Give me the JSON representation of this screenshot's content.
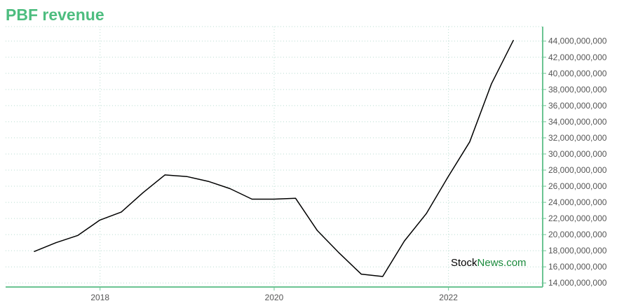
{
  "chart_data": {
    "type": "line",
    "title": "PBF revenue",
    "xlabel": "",
    "ylabel": "",
    "x": [
      "2017-03-31",
      "2017-06-30",
      "2017-09-30",
      "2017-12-31",
      "2018-03-31",
      "2018-06-30",
      "2018-09-30",
      "2018-12-31",
      "2019-03-31",
      "2019-06-30",
      "2019-09-30",
      "2019-12-31",
      "2020-03-31",
      "2020-06-30",
      "2020-09-30",
      "2020-12-31",
      "2021-03-31",
      "2021-06-30",
      "2021-09-30",
      "2021-12-31",
      "2022-03-31",
      "2022-06-30",
      "2022-09-30"
    ],
    "series": [
      {
        "values": [
          17900000000,
          19000000000,
          19900000000,
          21800000000,
          22800000000,
          25200000000,
          27400000000,
          27200000000,
          26600000000,
          25700000000,
          24400000000,
          24400000000,
          24500000000,
          20500000000,
          17700000000,
          15100000000,
          14800000000,
          19200000000,
          22600000000,
          27200000000,
          31500000000,
          38700000000,
          44100000000
        ]
      }
    ],
    "x_ticks": [
      "2018",
      "2020",
      "2022"
    ],
    "y_ticks": [
      "14,000,000,000",
      "16,000,000,000",
      "18,000,000,000",
      "20,000,000,000",
      "22,000,000,000",
      "24,000,000,000",
      "26,000,000,000",
      "28,000,000,000",
      "30,000,000,000",
      "32,000,000,000",
      "34,000,000,000",
      "36,000,000,000",
      "38,000,000,000",
      "40,000,000,000",
      "42,000,000,000",
      "44,000,000,000"
    ],
    "ylim": [
      13500000000,
      45800000000
    ],
    "xlim": [
      "2016-12-01",
      "2023-01-31"
    ],
    "grid": true,
    "y_axis_position": "right",
    "colors": {
      "line": "#000000",
      "axis": "#6bc492",
      "grid": "#b8dcd0",
      "title": "#4dbd7f"
    }
  },
  "watermark": {
    "part1": "Stock",
    "part2": "News.com",
    "color1": "#000000",
    "color2": "#1a8a3c"
  }
}
